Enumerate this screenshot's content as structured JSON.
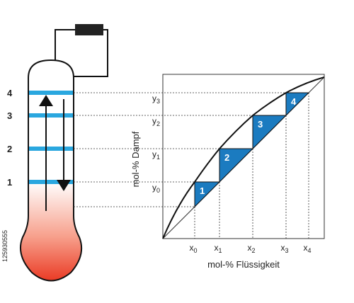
{
  "column": {
    "tray_labels": [
      "1",
      "2",
      "3",
      "4"
    ]
  },
  "chart": {
    "y_axis_label": "mol-% Dampf",
    "x_axis_label": "mol-% Flüssigkeit",
    "stage_labels": [
      "1",
      "2",
      "3",
      "4"
    ],
    "y_labels": [
      {
        "letter": "y",
        "index": "0"
      },
      {
        "letter": "y",
        "index": "1"
      },
      {
        "letter": "y",
        "index": "2"
      },
      {
        "letter": "y",
        "index": "3"
      }
    ],
    "x_labels": [
      {
        "letter": "x",
        "index": "0"
      },
      {
        "letter": "x",
        "index": "1"
      },
      {
        "letter": "x",
        "index": "2"
      },
      {
        "letter": "x",
        "index": "3"
      },
      {
        "letter": "x",
        "index": "4"
      }
    ]
  },
  "watermark": "125930555"
}
